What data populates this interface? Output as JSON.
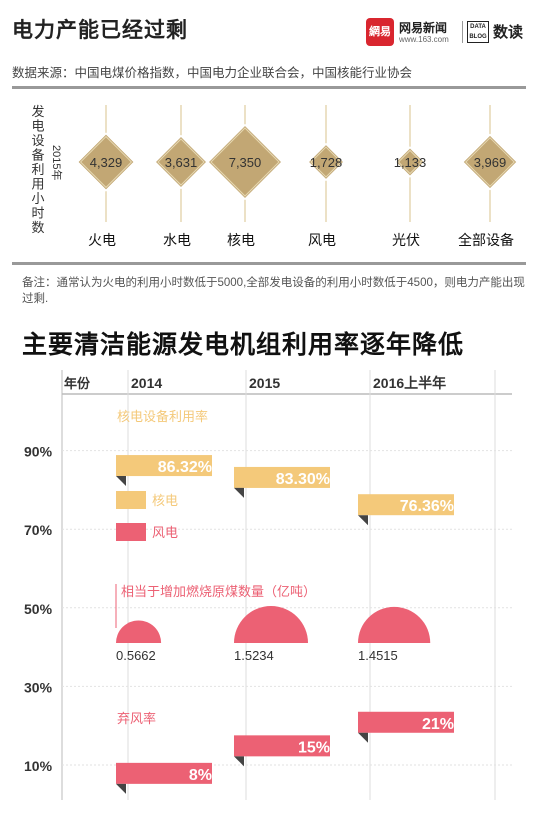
{
  "header": {
    "title": "电力产能已经过剩",
    "source": "数据来源：中国电煤价格指数，中国电力企业联合会，中国核能行业协会"
  },
  "branding": {
    "logo_mark": "網易",
    "name": "网易新闻",
    "url": "www.163.com",
    "box_text": "DATA BLOG",
    "column": "数读"
  },
  "top_chart": {
    "side_label": "发电设备利用小时数",
    "year_label": "2015年"
  },
  "note": "备注：通常认为火电的利用小时数低于5000,全部发电设备的利用小时数低于4500，则电力产能出现过剩.",
  "section_title": "主要清洁能源发电机组利用率逐年降低",
  "bottom_chart": {
    "year_header": "年份",
    "core_series_label": "核电设备利用率",
    "coal_label": "相当于增加燃烧原煤数量（亿吨）",
    "curtail_label": "弃风率",
    "legend": [
      {
        "label": "核电",
        "color": "#f4c97a"
      },
      {
        "label": "风电",
        "color": "#ec6174"
      }
    ]
  },
  "colors": {
    "diamond": "#c2a774",
    "nuclear": "#f4c97a",
    "wind": "#ec6174",
    "axis_text": "#333333",
    "grid": "#cccccc"
  },
  "chart_data": [
    {
      "type": "scatter",
      "title": "电力产能已经过剩",
      "ylabel": "发电设备利用小时数",
      "categories": [
        "火电",
        "水电",
        "核电",
        "风电",
        "光伏",
        "全部设备"
      ],
      "values": [
        4329,
        3631,
        7350,
        1728,
        1133,
        3969
      ],
      "labels": [
        "4,329",
        "3,631",
        "7,350",
        "1,728",
        "1,133",
        "3,969"
      ],
      "year": "2015年",
      "encoding": "diamond area"
    },
    {
      "type": "bar",
      "title": "主要清洁能源发电机组利用率逐年降低",
      "categories": [
        "2014",
        "2015",
        "2016上半年"
      ],
      "yticks": [
        "90%",
        "70%",
        "50%",
        "30%",
        "10%"
      ],
      "ylim": [
        0,
        100
      ],
      "series": [
        {
          "name": "核电设备利用率",
          "values": [
            86.32,
            83.3,
            76.36
          ],
          "labels": [
            "86.32%",
            "83.30%",
            "76.36%"
          ]
        },
        {
          "name": "弃风率",
          "values": [
            8,
            15,
            21
          ],
          "labels": [
            "8%",
            "15%",
            "21%"
          ]
        },
        {
          "name": "相当于增加燃烧原煤数量（亿吨）",
          "values": [
            0.5662,
            1.5234,
            1.4515
          ],
          "labels": [
            "0.5662",
            "1.5234",
            "1.4515"
          ]
        }
      ],
      "legend": [
        "核电",
        "风电"
      ]
    }
  ]
}
